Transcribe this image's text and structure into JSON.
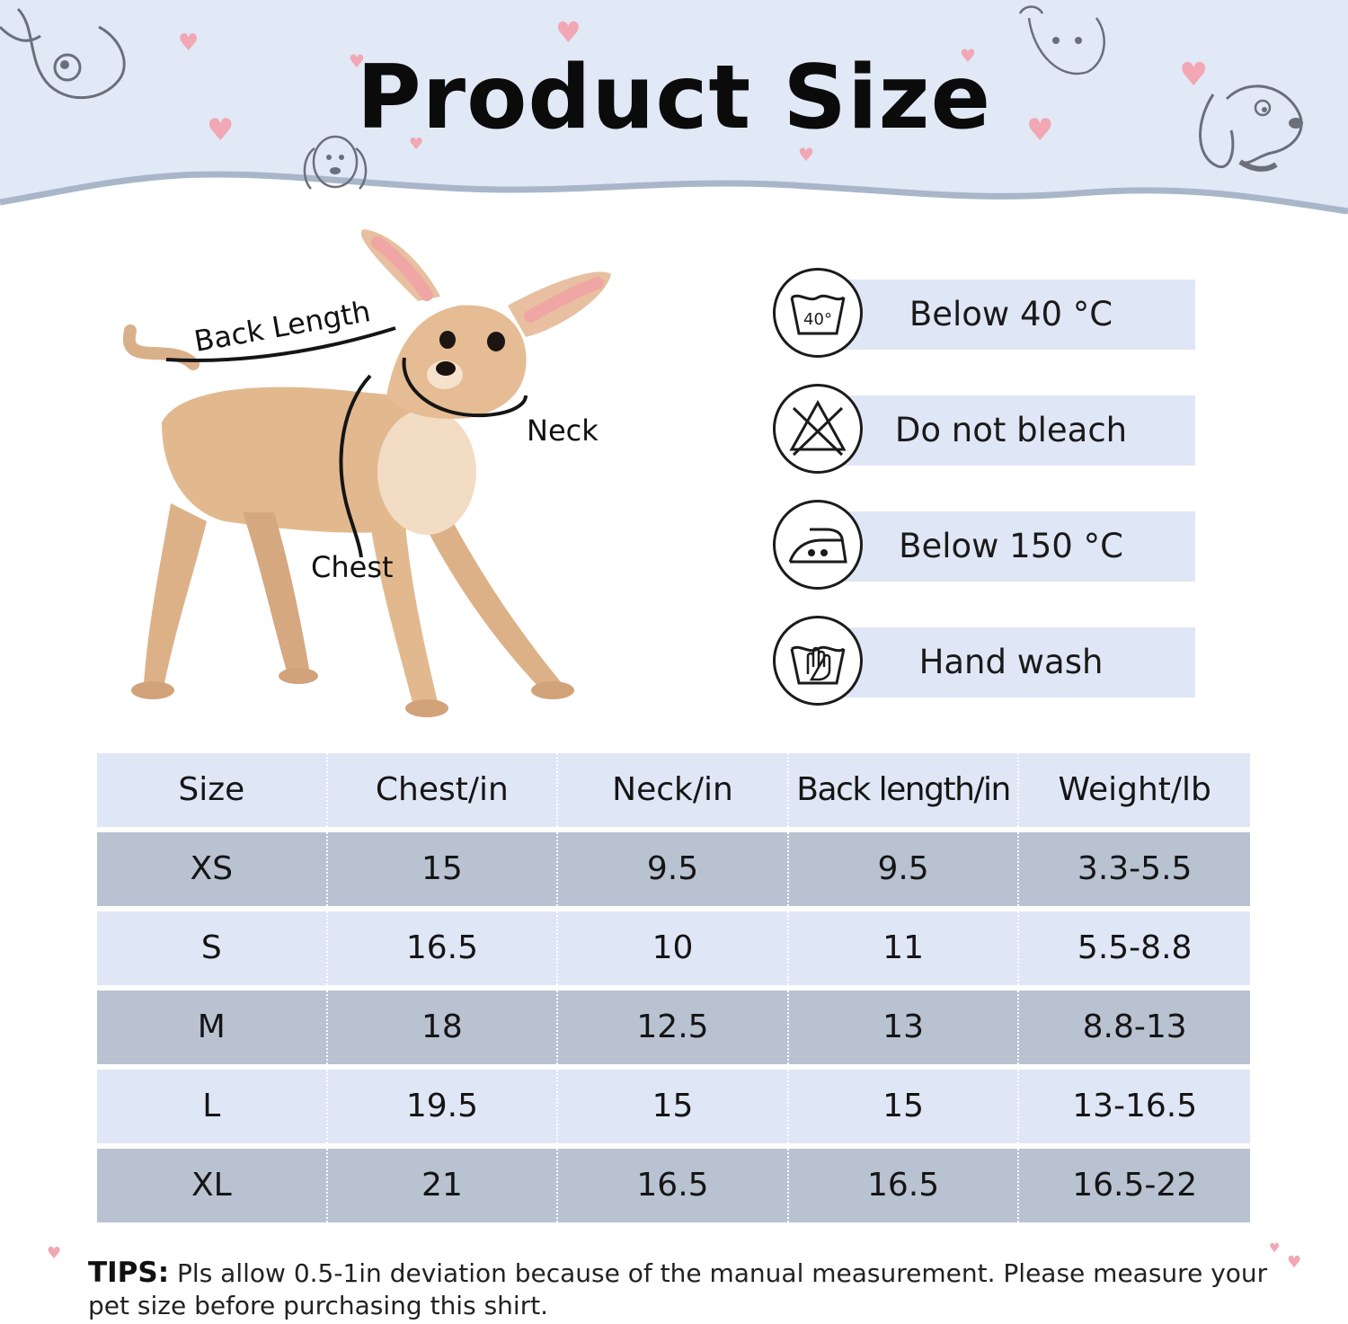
{
  "header": {
    "title": "Product Size",
    "bg_color": "#e1e8f6"
  },
  "diagram": {
    "back_label": "Back Length",
    "neck_label": "Neck",
    "chest_label": "Chest"
  },
  "care": [
    {
      "icon": "wash-40-icon",
      "label": "Below 40 °C",
      "icon_text": "40°"
    },
    {
      "icon": "no-bleach-icon",
      "label": "Do not bleach"
    },
    {
      "icon": "iron-150-icon",
      "label": "Below 150 °C"
    },
    {
      "icon": "hand-wash-icon",
      "label": "Hand wash"
    }
  ],
  "table": {
    "headers": [
      "Size",
      "Chest/in",
      "Neck/in",
      "Back length/in",
      "Weight/lb"
    ],
    "rows": [
      [
        "XS",
        "15",
        "9.5",
        "9.5",
        "3.3-5.5"
      ],
      [
        "S",
        "16.5",
        "10",
        "11",
        "5.5-8.8"
      ],
      [
        "M",
        "18",
        "12.5",
        "13",
        "8.8-13"
      ],
      [
        "L",
        "19.5",
        "15",
        "15",
        "13-16.5"
      ],
      [
        "XL",
        "21",
        "16.5",
        "16.5",
        "16.5-22"
      ]
    ],
    "light_color": "#dfe6f5",
    "dark_color": "#b8c2d1"
  },
  "tips": {
    "label": "TIPS:",
    "text": "Pls allow 0.5-1in deviation because of the manual measurement. Please measure your pet size before purchasing this shirt."
  }
}
